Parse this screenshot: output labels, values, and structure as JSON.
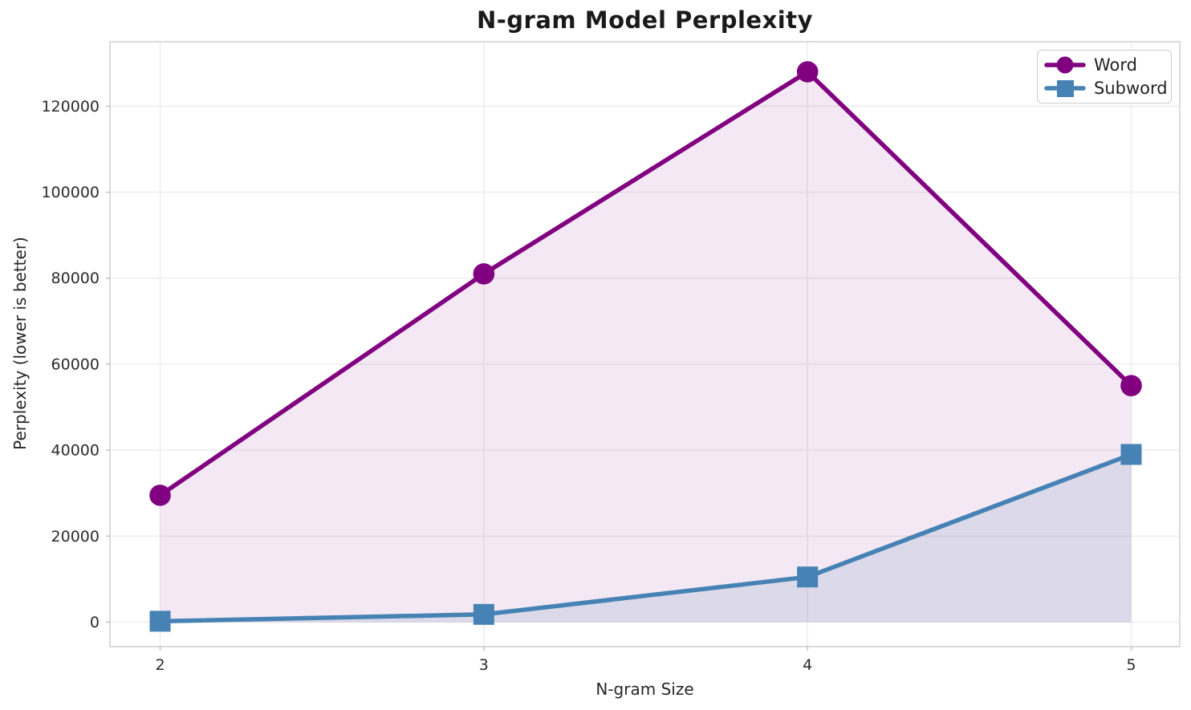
{
  "chart_data": {
    "type": "line",
    "title": "N-gram Model Perplexity",
    "xlabel": "N-gram Size",
    "ylabel": "Perplexity (lower is better)",
    "x": [
      2,
      3,
      4,
      5
    ],
    "series": [
      {
        "name": "Word",
        "marker": "circle",
        "color": "#800080",
        "fill_opacity": 0.09,
        "values": [
          29500,
          81000,
          128000,
          55000
        ]
      },
      {
        "name": "Subword",
        "marker": "square",
        "color": "#4682b4",
        "fill_opacity": 0.14,
        "values": [
          200,
          1800,
          10500,
          39000
        ]
      }
    ],
    "xticks": [
      2,
      3,
      4,
      5
    ],
    "yticks": [
      0,
      20000,
      40000,
      60000,
      80000,
      100000,
      120000
    ],
    "xlim": [
      1.845,
      5.15
    ],
    "ylim": [
      -5700,
      135000
    ],
    "grid": true,
    "fill_to_zero": true,
    "legend_position": "upper right",
    "colors": {
      "grid": "#ececec",
      "spine": "#cfcfcf",
      "tick_label": "#2b2b2b"
    }
  }
}
